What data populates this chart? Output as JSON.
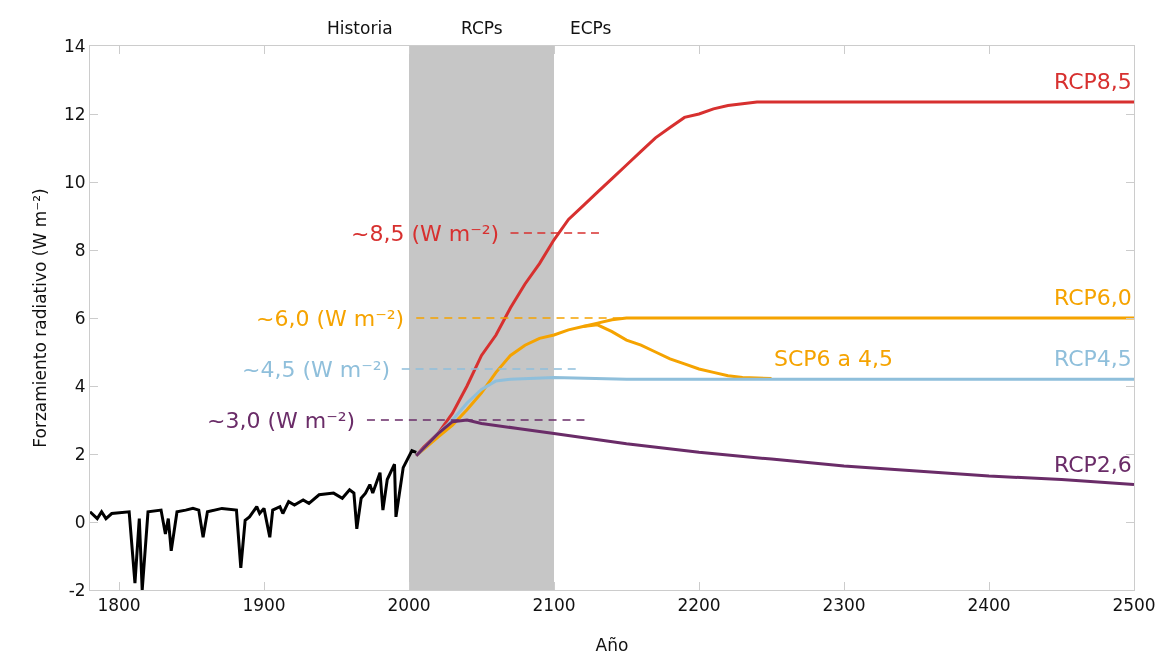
{
  "chart_data": {
    "type": "line",
    "xlabel": "Año",
    "ylabel": "Forzamiento radiativo (W m⁻²)",
    "xlim": [
      1780,
      2500
    ],
    "ylim": [
      -2,
      14
    ],
    "xticks": [
      1800,
      1900,
      2000,
      2100,
      2200,
      2300,
      2400,
      2500
    ],
    "yticks": [
      -2,
      0,
      2,
      4,
      6,
      8,
      10,
      12,
      14
    ],
    "grid": false,
    "legend": false,
    "marker": "none",
    "line_style": "solid",
    "bands": [
      {
        "axis": "x",
        "from": 2000,
        "to": 2100,
        "color": "#c6c6c6"
      }
    ],
    "annotations": [
      "Historia",
      "RCPs",
      "ECPs",
      {
        "text": "~8,5 (W m⁻²)",
        "x": 2070,
        "y": 8.5
      },
      {
        "text": "~6,0 (W m⁻²)",
        "x": 2005,
        "y": 6
      },
      {
        "text": "~4,5 (W m⁻²)",
        "x": 1995,
        "y": 4.5
      },
      {
        "text": "~3,0 (W m⁻²)",
        "x": 1971,
        "y": 3
      }
    ],
    "series": [
      {
        "color": "#000000",
        "x": [
          1780,
          1785,
          1788,
          1791,
          1795,
          1807,
          1811,
          1814,
          1816,
          1820,
          1829,
          1832,
          1834,
          1836,
          1840,
          1846,
          1851,
          1855,
          1858,
          1861,
          1871,
          1881,
          1884,
          1887,
          1890,
          1895,
          1897,
          1900,
          1904,
          1906,
          1911,
          1913,
          1917,
          1921,
          1927,
          1931,
          1938,
          1948,
          1954,
          1959,
          1962,
          1964,
          1967,
          1970,
          1973,
          1975,
          1980,
          1982,
          1985,
          1990,
          1991,
          1996,
          2002,
          2005
        ],
        "values": [
          0.3,
          0.1,
          0.3,
          0.1,
          0.25,
          0.3,
          -1.8,
          0.1,
          -2,
          0.3,
          0.35,
          -0.35,
          0.1,
          -0.85,
          0.3,
          0.35,
          0.4,
          0.35,
          -0.45,
          0.3,
          0.4,
          0.35,
          -1.35,
          0.05,
          0.15,
          0.45,
          0.25,
          0.4,
          -0.45,
          0.35,
          0.45,
          0.25,
          0.6,
          0.5,
          0.65,
          0.55,
          0.8,
          0.85,
          0.7,
          0.95,
          0.85,
          -0.2,
          0.7,
          0.85,
          1.1,
          0.85,
          1.45,
          0.35,
          1.25,
          1.7,
          0.15,
          1.6,
          2.1,
          2.05
        ]
      },
      {
        "name": "RCP8,5",
        "color": "#d7302f",
        "x": [
          2005,
          2010,
          2020,
          2030,
          2040,
          2050,
          2060,
          2070,
          2080,
          2090,
          2100,
          2110,
          2120,
          2130,
          2140,
          2150,
          2160,
          2170,
          2180,
          2190,
          2200,
          2210,
          2220,
          2230,
          2240,
          2250,
          2500
        ],
        "values": [
          1.95,
          2.2,
          2.6,
          3.2,
          4.0,
          4.9,
          5.5,
          6.3,
          7.0,
          7.6,
          8.3,
          8.9,
          9.3,
          9.7,
          10.1,
          10.5,
          10.9,
          11.3,
          11.6,
          11.9,
          12.0,
          12.15,
          12.25,
          12.3,
          12.35,
          12.35,
          12.35
        ]
      },
      {
        "name": "RCP6,0",
        "color": "#f5a300",
        "x": [
          2005,
          2020,
          2030,
          2040,
          2050,
          2060,
          2070,
          2080,
          2090,
          2100,
          2110,
          2120,
          2130,
          2140,
          2150,
          2500
        ],
        "values": [
          1.95,
          2.5,
          2.85,
          3.3,
          3.8,
          4.4,
          4.9,
          5.2,
          5.4,
          5.5,
          5.65,
          5.75,
          5.85,
          5.95,
          6.0,
          6.0
        ]
      },
      {
        "name": "SCP6 a 4,5",
        "color": "#f5a300",
        "x": [
          2120,
          2130,
          2140,
          2150,
          2160,
          2170,
          2180,
          2190,
          2200,
          2210,
          2220,
          2230,
          2250
        ],
        "values": [
          5.75,
          5.8,
          5.6,
          5.35,
          5.2,
          5.0,
          4.8,
          4.65,
          4.5,
          4.4,
          4.3,
          4.25,
          4.22
        ]
      },
      {
        "name": "RCP4,5",
        "color": "#8fbfdb",
        "x": [
          2005,
          2020,
          2030,
          2040,
          2050,
          2060,
          2070,
          2100,
          2150,
          2500
        ],
        "values": [
          1.95,
          2.6,
          3.0,
          3.5,
          3.9,
          4.15,
          4.2,
          4.25,
          4.2,
          4.2
        ]
      },
      {
        "name": "RCP2,6",
        "color": "#6a2c68",
        "x": [
          2005,
          2020,
          2030,
          2040,
          2050,
          2075,
          2100,
          2150,
          2200,
          2250,
          2300,
          2350,
          2400,
          2450,
          2500
        ],
        "values": [
          1.95,
          2.6,
          2.95,
          3.0,
          2.9,
          2.75,
          2.6,
          2.3,
          2.05,
          1.85,
          1.65,
          1.5,
          1.35,
          1.25,
          1.1
        ]
      },
      {
        "color": "#d7302f",
        "line_style": "dashed",
        "x": [
          2070,
          2131
        ],
        "values": [
          8.5,
          8.5
        ]
      },
      {
        "color": "#f5a300",
        "line_style": "dashed",
        "x": [
          2005,
          2146
        ],
        "values": [
          6,
          6
        ]
      },
      {
        "color": "#8fbfdb",
        "line_style": "dashed",
        "x": [
          1995,
          2115
        ],
        "values": [
          4.5,
          4.5
        ]
      },
      {
        "color": "#6a2c68",
        "line_style": "dashed",
        "x": [
          1971,
          2121
        ],
        "values": [
          3,
          3
        ]
      }
    ]
  }
}
